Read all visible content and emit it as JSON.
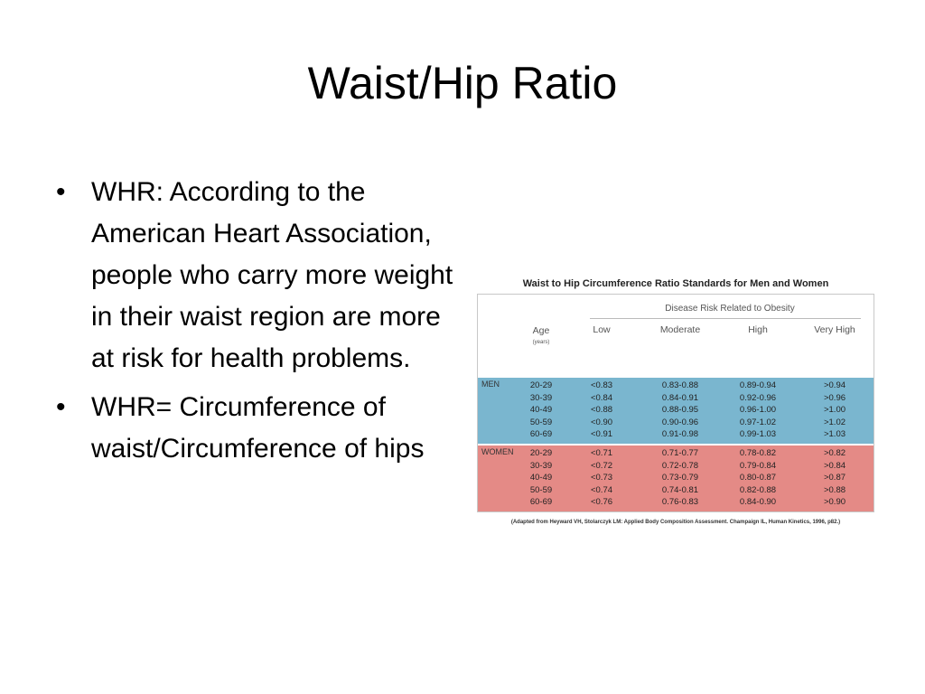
{
  "slide": {
    "title": "Waist/Hip Ratio",
    "bullets": [
      "WHR: According to the American Heart Association, people who carry more weight in their waist region are more at risk for health problems.",
      "WHR= Circumference of waist/Circumference of hips"
    ],
    "bullet_glyph": "•"
  },
  "table": {
    "title": "Waist to Hip Circumference Ratio Standards for Men and Women",
    "disease_risk_header": "Disease Risk Related to Obesity",
    "age_header": "Age",
    "age_unit": "(years)",
    "risk_columns": [
      "Low",
      "Moderate",
      "High",
      "Very High"
    ],
    "groups": [
      {
        "label": "MEN",
        "color": "#7ab6cf",
        "rows": [
          [
            "20-29",
            "<0.83",
            "0.83-0.88",
            "0.89-0.94",
            ">0.94"
          ],
          [
            "30-39",
            "<0.84",
            "0.84-0.91",
            "0.92-0.96",
            ">0.96"
          ],
          [
            "40-49",
            "<0.88",
            "0.88-0.95",
            "0.96-1.00",
            ">1.00"
          ],
          [
            "50-59",
            "<0.90",
            "0.90-0.96",
            "0.97-1.02",
            ">1.02"
          ],
          [
            "60-69",
            "<0.91",
            "0.91-0.98",
            "0.99-1.03",
            ">1.03"
          ]
        ]
      },
      {
        "label": "WOMEN",
        "color": "#e48a86",
        "rows": [
          [
            "20-29",
            "<0.71",
            "0.71-0.77",
            "0.78-0.82",
            ">0.82"
          ],
          [
            "30-39",
            "<0.72",
            "0.72-0.78",
            "0.79-0.84",
            ">0.84"
          ],
          [
            "40-49",
            "<0.73",
            "0.73-0.79",
            "0.80-0.87",
            ">0.87"
          ],
          [
            "50-59",
            "<0.74",
            "0.74-0.81",
            "0.82-0.88",
            ">0.88"
          ],
          [
            "60-69",
            "<0.76",
            "0.76-0.83",
            "0.84-0.90",
            ">0.90"
          ]
        ]
      }
    ],
    "source": "(Adapted from Heyward VH, Stolarczyk LM: Applied Body Composition Assessment. Champaign IL, Human Kinetics, 1996, p82.)"
  }
}
